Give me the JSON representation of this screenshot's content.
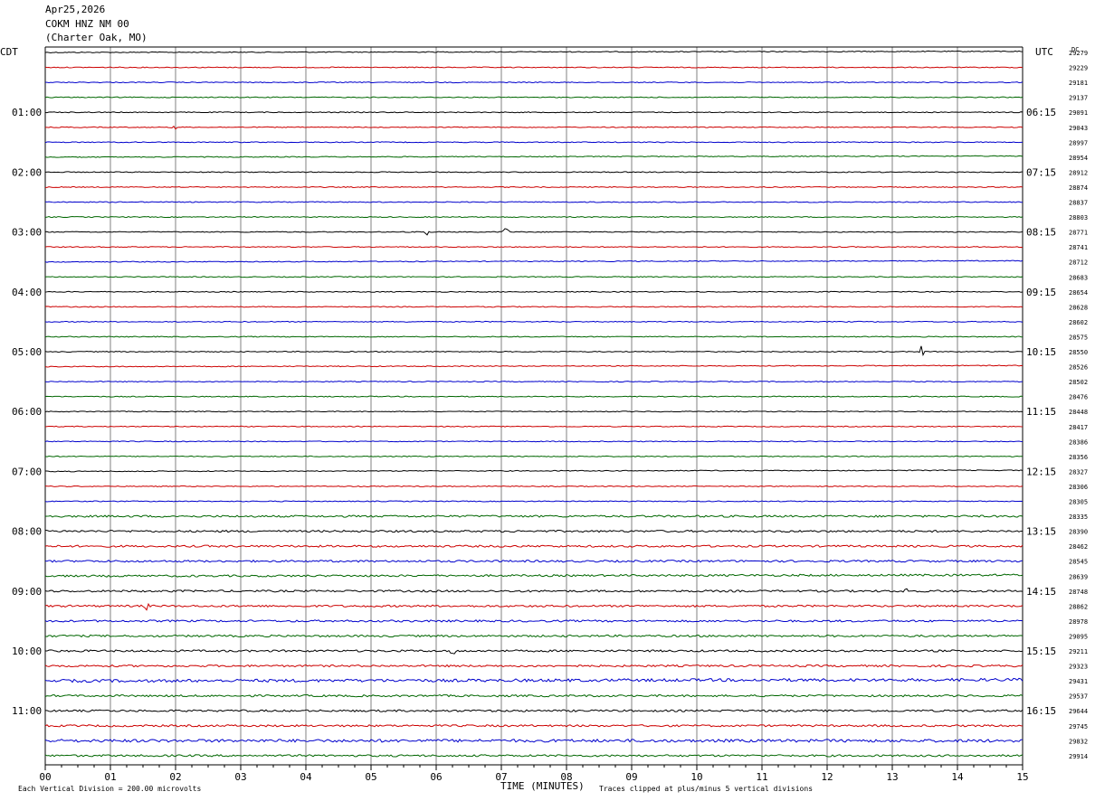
{
  "header": {
    "date": "Apr25,2026",
    "station": "COKM HNZ NM 00",
    "location": "(Charter Oak, MO)"
  },
  "labels": {
    "left_tz": "CDT",
    "right_tz": "UTC",
    "dc": "DC",
    "xlabel": "TIME (MINUTES)",
    "scale_note": "Each Vertical Division =  200.00 microvolts",
    "clip_note": "Traces clipped at plus/minus 5 vertical divisions"
  },
  "colors": {
    "trace_cycle": [
      "#000000",
      "#cc0000",
      "#0000cc",
      "#006600"
    ],
    "grid": "#808080",
    "background": "#ffffff"
  },
  "chart_data": {
    "type": "line",
    "title": "COKM HNZ NM 00",
    "xlabel": "TIME (MINUTES)",
    "xlim": [
      0,
      15
    ],
    "x_ticks": [
      "00",
      "01",
      "02",
      "03",
      "04",
      "05",
      "06",
      "07",
      "08",
      "09",
      "10",
      "11",
      "12",
      "13",
      "14",
      "15"
    ],
    "trace_minutes": 15,
    "trace_count": 48,
    "left_hour_labels": [
      "01:00",
      "02:00",
      "03:00",
      "04:00",
      "05:00",
      "06:00",
      "07:00",
      "08:00",
      "09:00",
      "10:00",
      "11:00"
    ],
    "right_hour_labels": [
      "06:15",
      "07:15",
      "08:15",
      "09:15",
      "10:15",
      "11:15",
      "12:15",
      "13:15",
      "14:15",
      "15:15",
      "16:15"
    ],
    "dc_offsets": [
      29279,
      29229,
      29181,
      29137,
      29091,
      29043,
      28997,
      28954,
      28912,
      28874,
      28837,
      28803,
      28771,
      28741,
      28712,
      28683,
      28654,
      28628,
      28602,
      28575,
      28550,
      28526,
      28502,
      28476,
      28448,
      28417,
      28386,
      28356,
      28327,
      28306,
      28305,
      28335,
      28390,
      28462,
      28545,
      28639,
      28748,
      28862,
      28978,
      29095,
      29211,
      29323,
      29431,
      29537,
      29644,
      29745,
      29832,
      29914
    ],
    "events": [
      {
        "trace": 12,
        "minute": 5.85,
        "amp": 6
      },
      {
        "trace": 12,
        "minute": 7.07,
        "amp": 9
      },
      {
        "trace": 20,
        "minute": 13.44,
        "amp": 12
      },
      {
        "trace": 36,
        "minute": 13.2,
        "amp": 7
      },
      {
        "trace": 37,
        "minute": 1.56,
        "amp": 8
      },
      {
        "trace": 40,
        "minute": 6.25,
        "amp": 18
      },
      {
        "trace": 5,
        "minute": 1.98,
        "amp": 5
      }
    ]
  }
}
